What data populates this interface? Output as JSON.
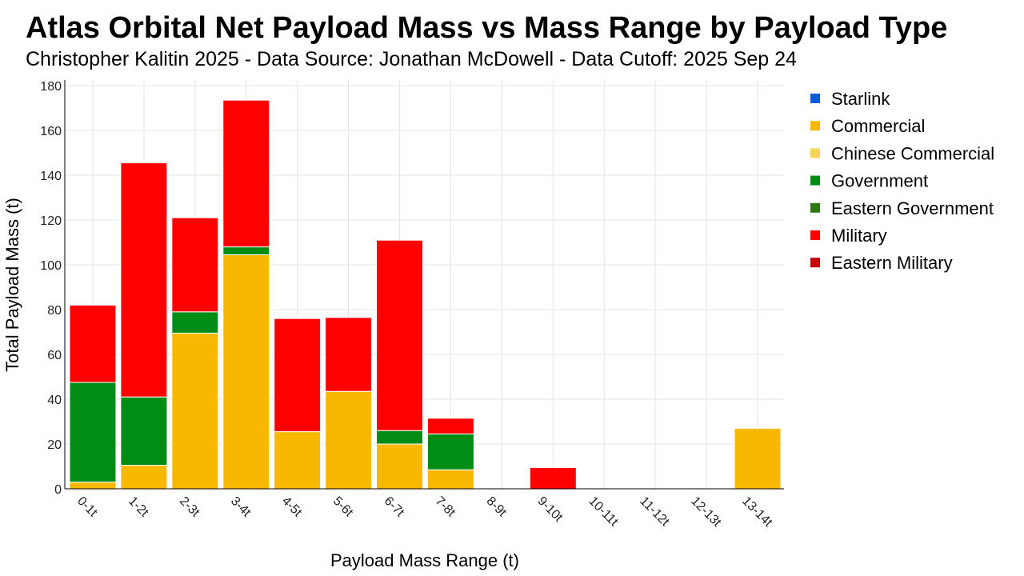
{
  "title": "Atlas Orbital Net Payload Mass vs Mass Range by Payload Type",
  "subtitle": "Christopher Kalitin 2025 - Data Source: Jonathan McDowell - Data Cutoff: 2025 Sep 24",
  "chart_data": {
    "type": "bar",
    "stacked": true,
    "title": "Atlas Orbital Net Payload Mass vs Mass Range by Payload Type",
    "subtitle": "Christopher Kalitin 2025 - Data Source: Jonathan McDowell - Data Cutoff: 2025 Sep 24",
    "xlabel": "Payload Mass Range (t)",
    "ylabel": "Total Payload Mass (t)",
    "ylim": [
      0,
      180
    ],
    "yticks": [
      0,
      20,
      40,
      60,
      80,
      100,
      120,
      140,
      160,
      180
    ],
    "grid": true,
    "legend_position": "right",
    "categories": [
      "0-1t",
      "1-2t",
      "2-3t",
      "3-4t",
      "4-5t",
      "5-6t",
      "6-7t",
      "7-8t",
      "8-9t",
      "9-10t",
      "10-11t",
      "11-12t",
      "12-13t",
      "13-14t"
    ],
    "series": [
      {
        "name": "Starlink",
        "color": "#0d5bdc",
        "values": [
          0,
          0,
          0,
          0,
          0,
          0,
          0,
          0,
          0,
          0,
          0,
          0,
          0,
          0
        ]
      },
      {
        "name": "Commercial",
        "color": "#f9b800",
        "values": [
          3,
          10.5,
          69.5,
          104.5,
          25.5,
          43.5,
          20,
          8.5,
          0,
          0,
          0,
          0,
          0,
          27
        ]
      },
      {
        "name": "Chinese Commercial",
        "color": "#f7d358",
        "values": [
          0,
          0,
          0,
          0,
          0,
          0,
          0,
          0,
          0,
          0,
          0,
          0,
          0,
          0
        ]
      },
      {
        "name": "Government",
        "color": "#008c15",
        "values": [
          44.5,
          30.5,
          9.5,
          3.5,
          0,
          0,
          6,
          16,
          0,
          0,
          0,
          0,
          0,
          0
        ]
      },
      {
        "name": "Eastern Government",
        "color": "#2d7811",
        "values": [
          0,
          0,
          0,
          0,
          0,
          0,
          0,
          0,
          0,
          0,
          0,
          0,
          0,
          0
        ]
      },
      {
        "name": "Military",
        "color": "#ff0000",
        "values": [
          34.5,
          104.5,
          42,
          65.5,
          50.5,
          33,
          85,
          7,
          0,
          9.5,
          0,
          0,
          0,
          0
        ]
      },
      {
        "name": "Eastern Military",
        "color": "#cc0000",
        "values": [
          0,
          0,
          0,
          0,
          0,
          0,
          0,
          0,
          0,
          0,
          0,
          0,
          0,
          0
        ]
      }
    ]
  }
}
